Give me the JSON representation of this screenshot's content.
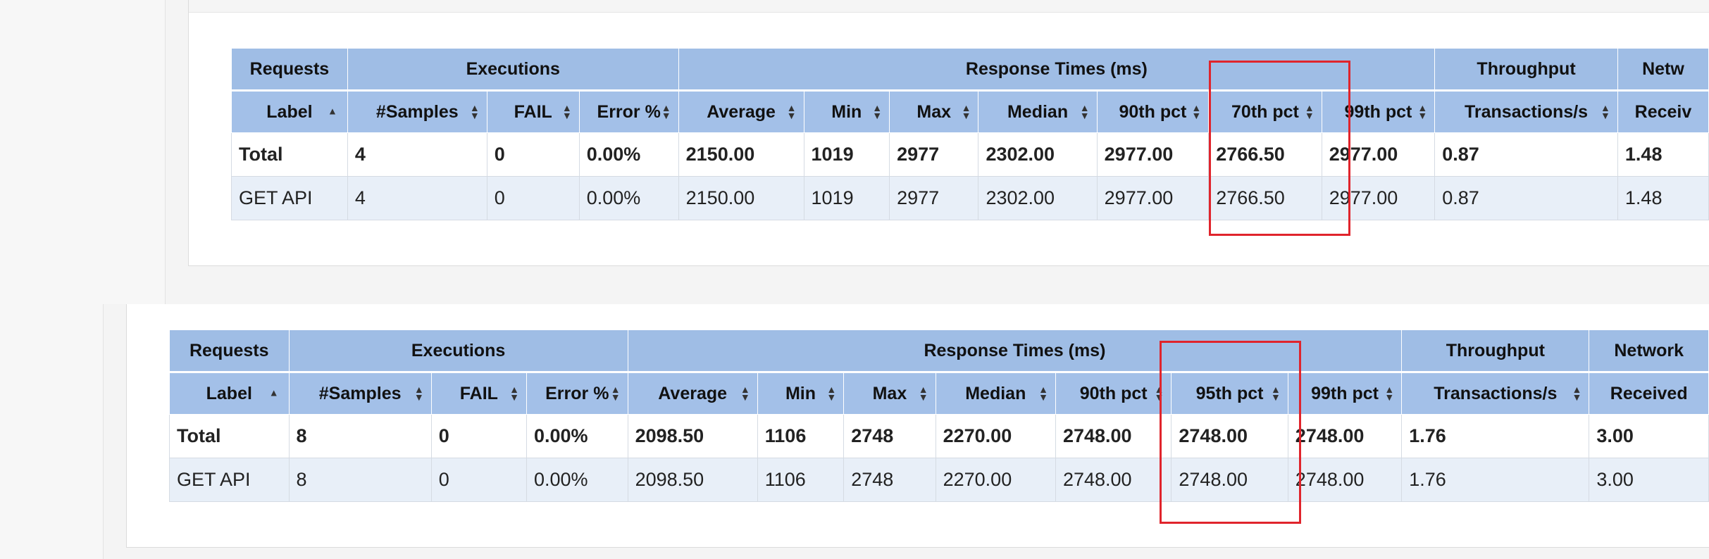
{
  "top": {
    "groups": [
      "Requests",
      "Executions",
      "Response Times (ms)",
      "Throughput",
      "Netw"
    ],
    "columns": [
      "Label",
      "#Samples",
      "FAIL",
      "Error %",
      "Average",
      "Min",
      "Max",
      "Median",
      "90th pct",
      "70th pct",
      "99th pct",
      "Transactions/s",
      "Receiv"
    ],
    "rows": [
      {
        "kind": "total",
        "cells": [
          "Total",
          "4",
          "0",
          "0.00%",
          "2150.00",
          "1019",
          "2977",
          "2302.00",
          "2977.00",
          "2766.50",
          "2977.00",
          "0.87",
          "1.48"
        ]
      },
      {
        "kind": "data",
        "cells": [
          "GET API",
          "4",
          "0",
          "0.00%",
          "2150.00",
          "1019",
          "2977",
          "2302.00",
          "2977.00",
          "2766.50",
          "2977.00",
          "0.87",
          "1.48"
        ]
      }
    ]
  },
  "bottom": {
    "groups": [
      "Requests",
      "Executions",
      "Response Times (ms)",
      "Throughput",
      "Network"
    ],
    "columns": [
      "Label",
      "#Samples",
      "FAIL",
      "Error %",
      "Average",
      "Min",
      "Max",
      "Median",
      "90th pct",
      "95th pct",
      "99th pct",
      "Transactions/s",
      "Received"
    ],
    "rows": [
      {
        "kind": "total",
        "cells": [
          "Total",
          "8",
          "0",
          "0.00%",
          "2098.50",
          "1106",
          "2748",
          "2270.00",
          "2748.00",
          "2748.00",
          "2748.00",
          "1.76",
          "3.00"
        ]
      },
      {
        "kind": "data",
        "cells": [
          "GET API",
          "8",
          "0",
          "0.00%",
          "2098.50",
          "1106",
          "2748",
          "2270.00",
          "2748.00",
          "2748.00",
          "2748.00",
          "1.76",
          "3.00"
        ]
      }
    ]
  },
  "colors": {
    "header_bg": "#9fbde5",
    "row_alt_bg": "#e8eff8",
    "highlight": "#e0242c"
  },
  "icons": {
    "sort_both": "sort-icon",
    "sort_asc": "sort-asc-icon"
  }
}
